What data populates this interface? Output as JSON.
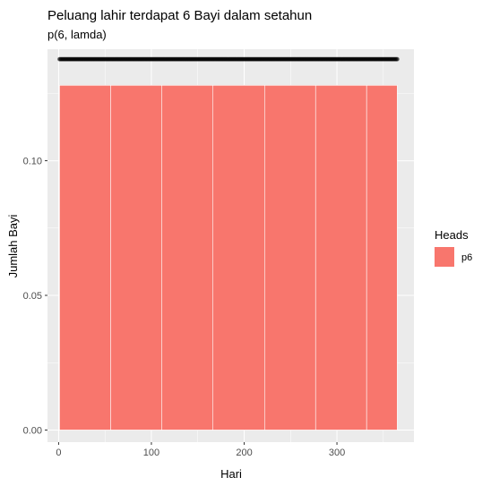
{
  "chart_data": {
    "type": "bar",
    "title": "Peluang lahir terdapat 6 Bayi dalam setahun",
    "subtitle": "p(6, lamda)",
    "xlabel": "Hari",
    "ylabel": "Jumlah Bayi",
    "xlim": [
      -12,
      383
    ],
    "ylim": [
      -0.0045,
      0.1414
    ],
    "x_ticks": [
      0,
      100,
      200,
      300
    ],
    "x_tick_labels": [
      "0",
      "100",
      "200",
      "300"
    ],
    "y_ticks": [
      0.0,
      0.05,
      0.1
    ],
    "y_tick_labels": [
      "0.00",
      "0.05",
      "0.10"
    ],
    "bars": [
      {
        "x_start": 1,
        "x_end": 56,
        "value": 0.128
      },
      {
        "x_start": 56,
        "x_end": 111,
        "value": 0.128
      },
      {
        "x_start": 111,
        "x_end": 166,
        "value": 0.128
      },
      {
        "x_start": 166,
        "x_end": 222,
        "value": 0.128
      },
      {
        "x_start": 222,
        "x_end": 277,
        "value": 0.128
      },
      {
        "x_start": 277,
        "x_end": 332,
        "value": 0.128
      },
      {
        "x_start": 332,
        "x_end": 365,
        "value": 0.128
      }
    ],
    "points_series": {
      "name": "p6",
      "x_start": 1,
      "x_end": 365,
      "y": 0.1377
    },
    "legend": {
      "title": "Heads",
      "entries": [
        {
          "label": "p6",
          "color": "#F8766D"
        }
      ],
      "position": "right"
    },
    "grid": true,
    "colors": {
      "bar_fill": "#F8766D",
      "bar_outline": "#ffffff",
      "panel": "#EBEBEB",
      "grid": "#ffffff",
      "points": "#000000"
    }
  }
}
